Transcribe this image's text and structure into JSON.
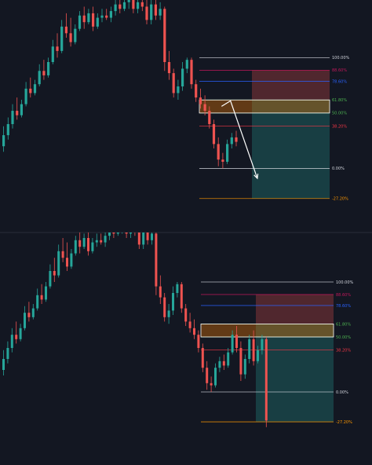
{
  "colors": {
    "background": "#131722",
    "up": "#26a69a",
    "down": "#ef5350",
    "separator": "#2a2e39",
    "fib_line": "#d1d4dc",
    "fib_pink": "#c2185b",
    "fib_blue": "#2962ff",
    "fib_green": "#4caf50",
    "fib_red": "#f23645",
    "fib_orange": "#ff9800",
    "zone_orange": "#f57c00",
    "stop_zone": "#ef5350",
    "target_zone": "#26a69a",
    "arrow": "#ffffff"
  },
  "chart_data": [
    {
      "type": "candlestick",
      "panel": "top",
      "ylim": [
        -0.55,
        1.52
      ],
      "candles_up_to": 53,
      "candles": [
        [
          0.2,
          0.38,
          0.15,
          0.3
        ],
        [
          0.3,
          0.46,
          0.26,
          0.4
        ],
        [
          0.4,
          0.58,
          0.36,
          0.52
        ],
        [
          0.52,
          0.64,
          0.44,
          0.48
        ],
        [
          0.48,
          0.62,
          0.46,
          0.58
        ],
        [
          0.58,
          0.78,
          0.56,
          0.72
        ],
        [
          0.72,
          0.82,
          0.64,
          0.68
        ],
        [
          0.68,
          0.8,
          0.66,
          0.76
        ],
        [
          0.76,
          0.94,
          0.74,
          0.88
        ],
        [
          0.88,
          0.98,
          0.8,
          0.84
        ],
        [
          0.84,
          1.0,
          0.82,
          0.96
        ],
        [
          0.96,
          1.16,
          0.94,
          1.1
        ],
        [
          1.1,
          1.22,
          1.0,
          1.06
        ],
        [
          1.06,
          1.34,
          1.04,
          1.28
        ],
        [
          1.28,
          1.4,
          1.18,
          1.22
        ],
        [
          1.22,
          1.36,
          1.1,
          1.14
        ],
        [
          1.14,
          1.3,
          1.12,
          1.26
        ],
        [
          1.26,
          1.42,
          1.24,
          1.38
        ],
        [
          1.38,
          1.46,
          1.26,
          1.32
        ],
        [
          1.32,
          1.44,
          1.3,
          1.4
        ],
        [
          1.4,
          1.46,
          1.24,
          1.28
        ],
        [
          1.28,
          1.4,
          1.26,
          1.36
        ],
        [
          1.36,
          1.44,
          1.32,
          1.38
        ],
        [
          1.38,
          1.44,
          1.34,
          1.36
        ],
        [
          1.36,
          1.46,
          1.32,
          1.42
        ],
        [
          1.42,
          1.52,
          1.38,
          1.48
        ],
        [
          1.48,
          1.52,
          1.4,
          1.44
        ],
        [
          1.44,
          1.52,
          1.42,
          1.5
        ],
        [
          1.5,
          1.54,
          1.44,
          1.52
        ],
        [
          1.52,
          1.54,
          1.4,
          1.44
        ],
        [
          1.44,
          1.52,
          1.4,
          1.5
        ],
        [
          1.5,
          1.54,
          1.42,
          1.46
        ],
        [
          1.46,
          1.52,
          1.3,
          1.34
        ],
        [
          1.34,
          1.52,
          1.3,
          1.48
        ],
        [
          1.48,
          1.54,
          1.34,
          1.38
        ],
        [
          1.38,
          1.5,
          1.34,
          1.44
        ],
        [
          1.44,
          1.46,
          0.88,
          0.96
        ],
        [
          0.96,
          1.06,
          0.8,
          0.86
        ],
        [
          0.86,
          0.9,
          0.64,
          0.68
        ],
        [
          0.68,
          0.8,
          0.62,
          0.74
        ],
        [
          0.74,
          0.96,
          0.7,
          0.9
        ],
        [
          0.9,
          1.0,
          0.86,
          0.98
        ],
        [
          0.98,
          1.0,
          0.72,
          0.76
        ],
        [
          0.76,
          0.8,
          0.6,
          0.64
        ],
        [
          0.64,
          0.72,
          0.54,
          0.58
        ],
        [
          0.58,
          0.66,
          0.48,
          0.52
        ],
        [
          0.52,
          0.56,
          0.36,
          0.4
        ],
        [
          0.4,
          0.44,
          0.18,
          0.22
        ],
        [
          0.22,
          0.28,
          0.02,
          0.08
        ],
        [
          0.08,
          0.14,
          0.0,
          0.06
        ],
        [
          0.06,
          0.26,
          0.04,
          0.22
        ],
        [
          0.22,
          0.32,
          0.18,
          0.28
        ],
        [
          0.28,
          0.34,
          0.2,
          0.24
        ]
      ],
      "fib_levels": [
        {
          "value": 1.0,
          "label": "100.00%",
          "color": "#d1d4dc"
        },
        {
          "value": 0.886,
          "label": "88.60%",
          "color": "#c2185b"
        },
        {
          "value": 0.786,
          "label": "78.60%",
          "color": "#2962ff"
        },
        {
          "value": 0.618,
          "label": "61.80%",
          "color": "#4caf50"
        },
        {
          "value": 0.5,
          "label": "50.00%",
          "color": "#4caf50"
        },
        {
          "value": 0.382,
          "label": "38.20%",
          "color": "#f23645"
        },
        {
          "value": 0.0,
          "label": "0.00%",
          "color": "#d1d4dc"
        },
        {
          "value": -0.272,
          "label": "-27.20%",
          "color": "#ff9800"
        }
      ],
      "entry_zone": [
        0.5,
        0.618
      ],
      "stop_zone": [
        0.618,
        0.886
      ],
      "target_zone": [
        -0.272,
        0.618
      ],
      "arrow_path": [
        [
          49,
          0.56
        ],
        [
          51,
          0.61
        ],
        [
          57,
          -0.09
        ]
      ]
    },
    {
      "type": "candlestick",
      "panel": "bottom",
      "ylim": [
        -0.65,
        1.45
      ],
      "candles_up_to": 63,
      "candles": [
        [
          0.2,
          0.38,
          0.15,
          0.3
        ],
        [
          0.3,
          0.46,
          0.26,
          0.4
        ],
        [
          0.4,
          0.58,
          0.36,
          0.52
        ],
        [
          0.52,
          0.64,
          0.44,
          0.48
        ],
        [
          0.48,
          0.62,
          0.46,
          0.58
        ],
        [
          0.58,
          0.78,
          0.56,
          0.72
        ],
        [
          0.72,
          0.82,
          0.64,
          0.68
        ],
        [
          0.68,
          0.8,
          0.66,
          0.76
        ],
        [
          0.76,
          0.94,
          0.74,
          0.88
        ],
        [
          0.88,
          0.98,
          0.8,
          0.84
        ],
        [
          0.84,
          1.0,
          0.82,
          0.96
        ],
        [
          0.96,
          1.16,
          0.94,
          1.1
        ],
        [
          1.1,
          1.22,
          1.0,
          1.06
        ],
        [
          1.06,
          1.34,
          1.04,
          1.28
        ],
        [
          1.28,
          1.4,
          1.18,
          1.22
        ],
        [
          1.22,
          1.36,
          1.1,
          1.14
        ],
        [
          1.14,
          1.3,
          1.12,
          1.26
        ],
        [
          1.26,
          1.42,
          1.24,
          1.38
        ],
        [
          1.38,
          1.46,
          1.26,
          1.32
        ],
        [
          1.32,
          1.44,
          1.3,
          1.4
        ],
        [
          1.4,
          1.46,
          1.24,
          1.28
        ],
        [
          1.28,
          1.4,
          1.26,
          1.36
        ],
        [
          1.36,
          1.44,
          1.32,
          1.38
        ],
        [
          1.38,
          1.44,
          1.34,
          1.36
        ],
        [
          1.36,
          1.46,
          1.32,
          1.42
        ],
        [
          1.42,
          1.52,
          1.38,
          1.48
        ],
        [
          1.48,
          1.52,
          1.4,
          1.44
        ],
        [
          1.44,
          1.52,
          1.42,
          1.5
        ],
        [
          1.5,
          1.54,
          1.44,
          1.52
        ],
        [
          1.52,
          1.54,
          1.4,
          1.44
        ],
        [
          1.44,
          1.52,
          1.4,
          1.5
        ],
        [
          1.5,
          1.54,
          1.42,
          1.46
        ],
        [
          1.46,
          1.52,
          1.3,
          1.34
        ],
        [
          1.34,
          1.52,
          1.3,
          1.48
        ],
        [
          1.48,
          1.54,
          1.34,
          1.38
        ],
        [
          1.38,
          1.5,
          1.34,
          1.44
        ],
        [
          1.44,
          1.46,
          0.88,
          0.96
        ],
        [
          0.96,
          1.06,
          0.8,
          0.86
        ],
        [
          0.86,
          0.9,
          0.64,
          0.68
        ],
        [
          0.68,
          0.8,
          0.62,
          0.74
        ],
        [
          0.74,
          0.96,
          0.7,
          0.9
        ],
        [
          0.9,
          1.0,
          0.86,
          0.98
        ],
        [
          0.98,
          1.0,
          0.72,
          0.76
        ],
        [
          0.76,
          0.8,
          0.6,
          0.64
        ],
        [
          0.64,
          0.72,
          0.54,
          0.58
        ],
        [
          0.58,
          0.66,
          0.48,
          0.52
        ],
        [
          0.52,
          0.56,
          0.36,
          0.4
        ],
        [
          0.4,
          0.44,
          0.18,
          0.22
        ],
        [
          0.22,
          0.28,
          0.02,
          0.08
        ],
        [
          0.08,
          0.14,
          0.0,
          0.06
        ],
        [
          0.06,
          0.26,
          0.04,
          0.22
        ],
        [
          0.22,
          0.32,
          0.18,
          0.28
        ],
        [
          0.28,
          0.34,
          0.2,
          0.24
        ],
        [
          0.24,
          0.4,
          0.22,
          0.36
        ],
        [
          0.36,
          0.56,
          0.34,
          0.52
        ],
        [
          0.52,
          0.6,
          0.36,
          0.4
        ],
        [
          0.4,
          0.46,
          0.1,
          0.16
        ],
        [
          0.16,
          0.34,
          0.12,
          0.3
        ],
        [
          0.3,
          0.52,
          0.26,
          0.48
        ],
        [
          0.48,
          0.56,
          0.24,
          0.28
        ],
        [
          0.28,
          0.42,
          0.26,
          0.38
        ],
        [
          0.38,
          0.52,
          0.34,
          0.48
        ],
        [
          0.48,
          0.5,
          -0.32,
          -0.26
        ]
      ],
      "fib_levels": [
        {
          "value": 1.0,
          "label": "100.00%",
          "color": "#d1d4dc"
        },
        {
          "value": 0.886,
          "label": "88.60%",
          "color": "#c2185b"
        },
        {
          "value": 0.786,
          "label": "78.60%",
          "color": "#2962ff"
        },
        {
          "value": 0.618,
          "label": "61.80%",
          "color": "#4caf50"
        },
        {
          "value": 0.5,
          "label": "50.00%",
          "color": "#4caf50"
        },
        {
          "value": 0.382,
          "label": "38.20%",
          "color": "#f23645"
        },
        {
          "value": 0.0,
          "label": "0.00%",
          "color": "#d1d4dc"
        },
        {
          "value": -0.272,
          "label": "-27.20%",
          "color": "#ff9800"
        }
      ],
      "entry_zone": [
        0.5,
        0.618
      ],
      "stop_zone": [
        0.618,
        0.886
      ],
      "target_zone": [
        -0.272,
        0.618
      ]
    }
  ]
}
